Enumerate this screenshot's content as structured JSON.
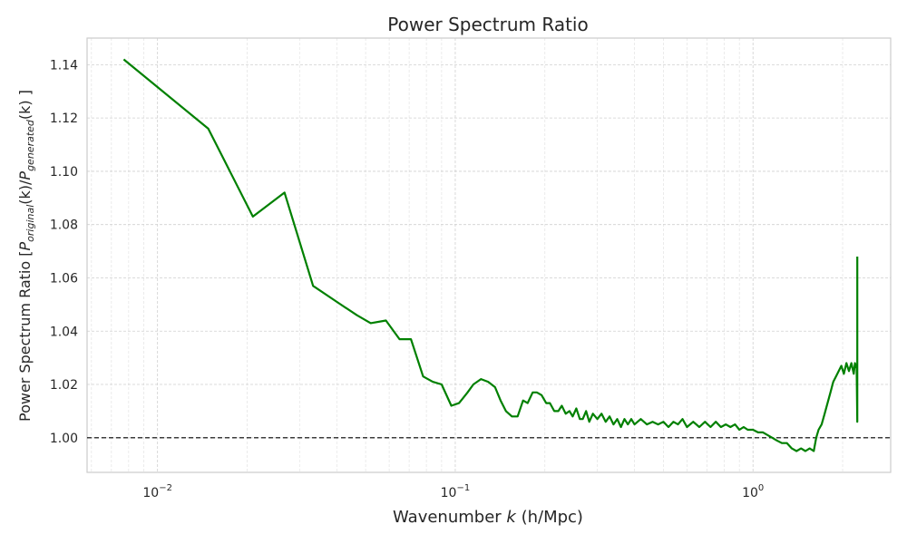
{
  "chart_data": {
    "type": "line",
    "title": "Power Spectrum Ratio",
    "xlabel": {
      "prefix": "Wavenumber ",
      "var": "k",
      "suffix": " (h/Mpc)"
    },
    "ylabel": {
      "prefix": "Power Spectrum Ratio [",
      "p1": "P",
      "s1": "original",
      "mid": "(k)/",
      "p2": "P",
      "s2": "generated",
      "suffix": "(k) ]"
    },
    "xscale": "log",
    "xlim": [
      0.0058,
      2.9
    ],
    "ylim": [
      0.987,
      1.15
    ],
    "yticks": [
      "1.00",
      "1.02",
      "1.04",
      "1.06",
      "1.08",
      "1.10",
      "1.12",
      "1.14"
    ],
    "xticks": [
      {
        "base": "10",
        "exp": "−2"
      },
      {
        "base": "10",
        "exp": "−1"
      },
      {
        "base": "10",
        "exp": "0"
      }
    ],
    "grid": true,
    "reference_line": {
      "y": 1.0,
      "style": "dashed",
      "color": "#000000"
    },
    "series": [
      {
        "color": "#008000",
        "x": [
          0.0077,
          0.0148,
          0.0209,
          0.0267,
          0.0333,
          0.04,
          0.0467,
          0.052,
          0.0585,
          0.065,
          0.071,
          0.078,
          0.084,
          0.09,
          0.097,
          0.103,
          0.11,
          0.115,
          0.122,
          0.129,
          0.136,
          0.142,
          0.148,
          0.155,
          0.162,
          0.169,
          0.175,
          0.182,
          0.188,
          0.195,
          0.202,
          0.208,
          0.215,
          0.222,
          0.228,
          0.235,
          0.242,
          0.248,
          0.255,
          0.262,
          0.268,
          0.275,
          0.282,
          0.29,
          0.3,
          0.31,
          0.32,
          0.33,
          0.34,
          0.35,
          0.36,
          0.37,
          0.38,
          0.39,
          0.4,
          0.42,
          0.44,
          0.46,
          0.48,
          0.5,
          0.52,
          0.54,
          0.56,
          0.58,
          0.6,
          0.63,
          0.66,
          0.69,
          0.72,
          0.75,
          0.78,
          0.81,
          0.84,
          0.87,
          0.9,
          0.93,
          0.96,
          1.0,
          1.04,
          1.08,
          1.12,
          1.16,
          1.2,
          1.25,
          1.3,
          1.35,
          1.4,
          1.45,
          1.5,
          1.55,
          1.6,
          1.63,
          1.66,
          1.7,
          1.74,
          1.78,
          1.82,
          1.86,
          1.9,
          1.94,
          1.98,
          2.02,
          2.06,
          2.1,
          2.14,
          2.18,
          2.2,
          2.23,
          2.24,
          2.24
        ],
        "y": [
          1.142,
          1.116,
          1.083,
          1.092,
          1.057,
          1.051,
          1.046,
          1.043,
          1.044,
          1.037,
          1.037,
          1.023,
          1.021,
          1.02,
          1.012,
          1.013,
          1.017,
          1.02,
          1.022,
          1.021,
          1.019,
          1.014,
          1.01,
          1.008,
          1.008,
          1.014,
          1.013,
          1.017,
          1.017,
          1.016,
          1.013,
          1.013,
          1.01,
          1.01,
          1.012,
          1.009,
          1.01,
          1.008,
          1.011,
          1.007,
          1.007,
          1.01,
          1.006,
          1.009,
          1.007,
          1.009,
          1.006,
          1.008,
          1.005,
          1.007,
          1.004,
          1.007,
          1.005,
          1.007,
          1.005,
          1.007,
          1.005,
          1.006,
          1.005,
          1.006,
          1.004,
          1.006,
          1.005,
          1.007,
          1.004,
          1.006,
          1.004,
          1.006,
          1.004,
          1.006,
          1.004,
          1.005,
          1.004,
          1.005,
          1.003,
          1.004,
          1.003,
          1.003,
          1.002,
          1.002,
          1.001,
          1.0,
          0.999,
          0.998,
          0.998,
          0.996,
          0.995,
          0.996,
          0.995,
          0.996,
          0.995,
          1.0,
          1.003,
          1.005,
          1.009,
          1.013,
          1.017,
          1.021,
          1.023,
          1.025,
          1.027,
          1.024,
          1.028,
          1.025,
          1.028,
          1.024,
          1.028,
          1.026,
          1.006,
          1.068
        ]
      }
    ]
  }
}
